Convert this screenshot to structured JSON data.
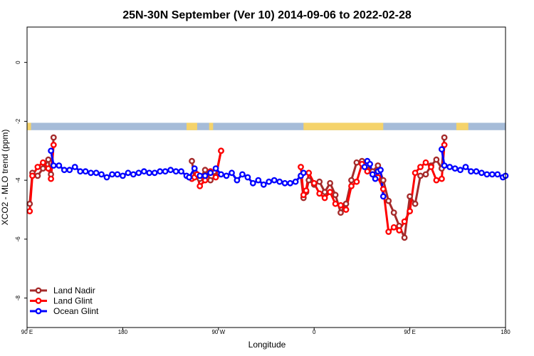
{
  "chart_data": {
    "type": "line",
    "title": "25N-30N September (Ver 10)   2014-09-06 to 2022-02-28",
    "xlabel": "Longitude",
    "ylabel": "XCO2 - MLO trend (ppm)",
    "xlim": [
      -90,
      270
    ],
    "ylim": [
      -9.0,
      1.2
    ],
    "x_ticks": [
      {
        "value": -90,
        "label": "90 E"
      },
      {
        "value": -18,
        "label": "180"
      },
      {
        "value": 54,
        "label": "90 W"
      },
      {
        "value": 126,
        "label": "0"
      },
      {
        "value": 198,
        "label": "90 E"
      },
      {
        "value": 270,
        "label": "180"
      }
    ],
    "y_ticks": [
      {
        "value": 0,
        "label": "0"
      },
      {
        "value": -2,
        "label": "-2"
      },
      {
        "value": -4,
        "label": "-4"
      },
      {
        "value": -6,
        "label": "-6"
      },
      {
        "value": -8,
        "label": "-8"
      }
    ],
    "land_mask_band": {
      "y_range": [
        -2.3,
        -2.05
      ],
      "land_color": "#f5d36b",
      "ocean_color": "#a6bcd8",
      "land_segments": [
        [
          -90,
          -87
        ],
        [
          30,
          38
        ],
        [
          47,
          50
        ],
        [
          118,
          178
        ],
        [
          233,
          242
        ]
      ]
    },
    "legend": {
      "position": "bottom-left",
      "entries": [
        {
          "name": "Land Nadir",
          "color": "#a52a2a"
        },
        {
          "name": "Land Glint",
          "color": "#ff0000"
        },
        {
          "name": "Ocean Glint",
          "color": "#0000ff"
        }
      ]
    },
    "series": [
      {
        "name": "Land Nadir",
        "color": "#a52a2a",
        "segments": [
          {
            "x": [
              -88,
              -86,
              -82,
              -78,
              -74,
              -72,
              -70
            ],
            "y": [
              -4.8,
              -3.75,
              -3.85,
              -3.6,
              -3.3,
              -3.8,
              -2.55
            ]
          },
          {
            "x": [
              34,
              36,
              38,
              40,
              44,
              48,
              52,
              56
            ],
            "y": [
              -3.35,
              -3.9,
              -3.85,
              -3.95,
              -3.65,
              -4.0,
              -3.85,
              -3.0
            ]
          },
          {
            "x": [
              116,
              118,
              120,
              122,
              126,
              130,
              134,
              138,
              142,
              146,
              150,
              154,
              158,
              162,
              166,
              170,
              174,
              178,
              182,
              186,
              190,
              194,
              198,
              202,
              206,
              210,
              214,
              218,
              222,
              224
            ],
            "y": [
              -3.85,
              -4.6,
              -4.4,
              -4.0,
              -4.15,
              -4.05,
              -4.4,
              -4.1,
              -4.5,
              -5.1,
              -4.8,
              -4.0,
              -3.4,
              -3.35,
              -3.5,
              -3.7,
              -3.5,
              -4.0,
              -4.7,
              -5.1,
              -5.55,
              -5.95,
              -4.55,
              -4.8,
              -3.85,
              -3.8,
              -3.5,
              -3.3,
              -3.6,
              -2.55
            ]
          }
        ]
      },
      {
        "name": "Land Glint",
        "color": "#ff0000",
        "segments": [
          {
            "x": [
              -88,
              -86,
              -82,
              -78,
              -74,
              -72,
              -70
            ],
            "y": [
              -5.05,
              -3.85,
              -3.55,
              -3.4,
              -3.6,
              -3.95,
              -2.8
            ]
          },
          {
            "x": [
              34,
              36,
              38,
              40,
              44,
              48,
              52,
              56
            ],
            "y": [
              -3.95,
              -3.9,
              -3.8,
              -4.2,
              -4.0,
              -3.7,
              -3.9,
              -3.0
            ]
          },
          {
            "x": [
              116,
              118,
              120,
              122,
              126,
              130,
              134,
              138,
              142,
              146,
              150,
              154,
              158,
              162,
              166,
              170,
              174,
              178,
              182,
              186,
              190,
              194,
              198,
              202,
              206,
              210,
              214,
              218,
              222,
              224
            ],
            "y": [
              -3.55,
              -4.5,
              -4.35,
              -3.75,
              -4.1,
              -4.45,
              -4.6,
              -4.4,
              -4.8,
              -4.85,
              -5.0,
              -4.2,
              -4.05,
              -3.45,
              -3.7,
              -3.8,
              -3.9,
              -4.3,
              -5.75,
              -5.6,
              -5.7,
              -5.4,
              -5.05,
              -3.75,
              -3.55,
              -3.4,
              -3.55,
              -4.0,
              -3.95,
              -2.8
            ]
          }
        ]
      },
      {
        "name": "Ocean Glint",
        "color": "#0000ff",
        "segments": [
          {
            "x": [
              -72,
              -70,
              -66,
              -62,
              -58,
              -54,
              -50,
              -46,
              -42,
              -38,
              -34,
              -30,
              -26,
              -22,
              -18,
              -14,
              -10,
              -6,
              -2,
              2,
              6,
              10,
              14,
              18,
              22,
              26,
              30,
              32
            ],
            "y": [
              -3.0,
              -3.5,
              -3.5,
              -3.65,
              -3.65,
              -3.55,
              -3.7,
              -3.7,
              -3.75,
              -3.75,
              -3.8,
              -3.9,
              -3.8,
              -3.8,
              -3.85,
              -3.75,
              -3.8,
              -3.75,
              -3.7,
              -3.75,
              -3.75,
              -3.7,
              -3.7,
              -3.65,
              -3.7,
              -3.7,
              -3.85,
              -3.9
            ]
          },
          {
            "x": [
              32,
              36,
              40,
              44,
              48,
              52,
              56,
              60,
              64,
              68,
              72,
              76,
              80,
              84,
              88,
              92,
              96,
              100,
              104,
              108,
              112,
              116,
              118
            ],
            "y": [
              -3.9,
              -3.6,
              -3.85,
              -3.85,
              -3.75,
              -3.6,
              -3.8,
              -3.85,
              -3.75,
              -4.0,
              -3.8,
              -3.9,
              -4.1,
              -4.0,
              -4.15,
              -4.05,
              -4.0,
              -4.05,
              -4.1,
              -4.1,
              -4.05,
              -3.85,
              -3.75
            ]
          },
          {
            "x": [
              164,
              166,
              168,
              170,
              172,
              174,
              176,
              178
            ],
            "y": [
              -3.55,
              -3.35,
              -3.45,
              -3.8,
              -3.95,
              -3.7,
              -3.65,
              -4.55
            ]
          },
          {
            "x": [
              222,
              224,
              228,
              232,
              236,
              240,
              244,
              248,
              252,
              256,
              260,
              264,
              268,
              270
            ],
            "y": [
              -2.95,
              -3.5,
              -3.55,
              -3.6,
              -3.65,
              -3.55,
              -3.7,
              -3.7,
              -3.75,
              -3.8,
              -3.8,
              -3.8,
              -3.9,
              -3.85
            ]
          }
        ]
      }
    ]
  }
}
